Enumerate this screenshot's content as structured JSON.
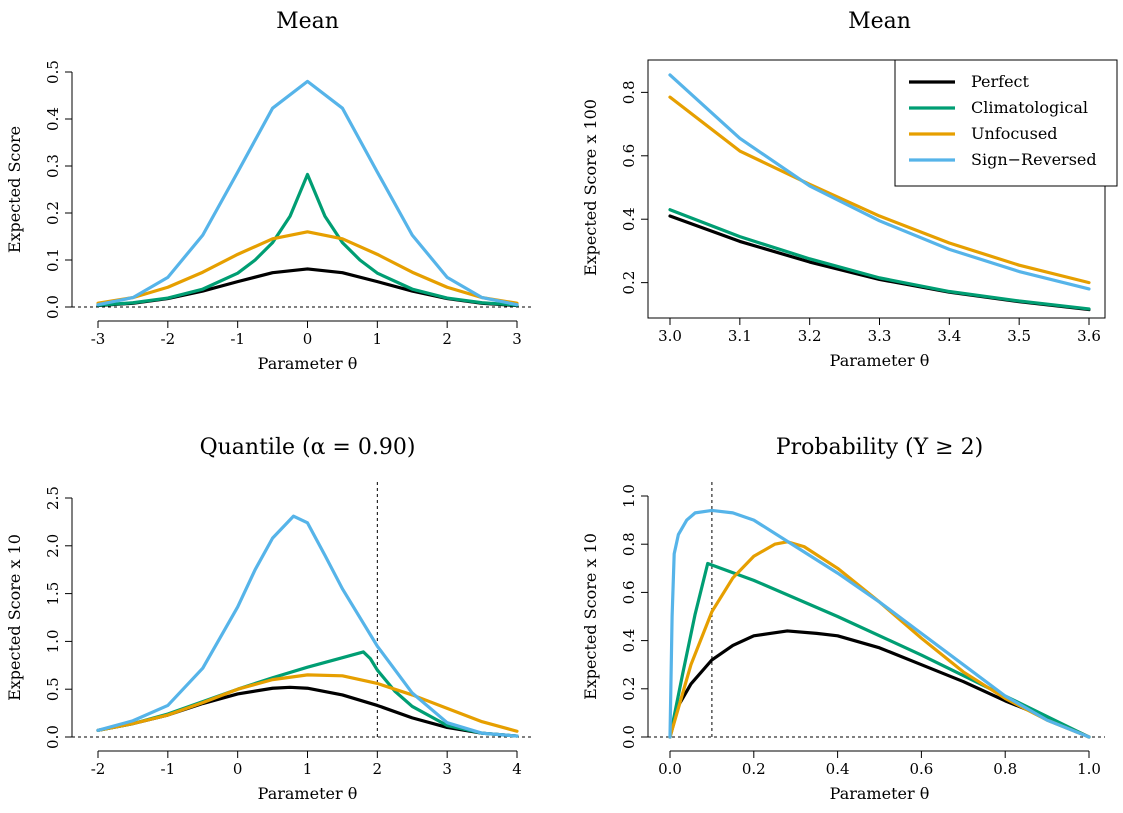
{
  "chart_data": [
    {
      "type": "line",
      "title": "Mean",
      "xlabel": "Parameter θ",
      "ylabel": "Expected Score",
      "xlim": [
        -3,
        3
      ],
      "ylim": [
        0,
        0.5
      ],
      "xticks": [
        -3,
        -2,
        -1,
        0,
        1,
        2,
        3
      ],
      "yticks": [
        "0.0",
        "0.1",
        "0.2",
        "0.3",
        "0.4",
        "0.5"
      ],
      "hline": 0,
      "series": [
        {
          "name": "Perfect",
          "color": "#000000",
          "x": [
            -3,
            -2.5,
            -2,
            -1.5,
            -1,
            -0.5,
            0,
            0.5,
            1,
            1.5,
            2,
            2.5,
            3
          ],
          "y": [
            0.003,
            0.008,
            0.018,
            0.034,
            0.054,
            0.073,
            0.081,
            0.073,
            0.054,
            0.034,
            0.018,
            0.008,
            0.003
          ]
        },
        {
          "name": "Climatological",
          "color": "#009E73",
          "x": [
            -3,
            -2.5,
            -2,
            -1.5,
            -1,
            -0.75,
            -0.5,
            -0.25,
            0,
            0.25,
            0.5,
            0.75,
            1,
            1.5,
            2,
            2.5,
            3
          ],
          "y": [
            0.004,
            0.009,
            0.019,
            0.038,
            0.072,
            0.1,
            0.137,
            0.193,
            0.282,
            0.193,
            0.137,
            0.1,
            0.072,
            0.038,
            0.019,
            0.009,
            0.004
          ]
        },
        {
          "name": "Unfocused",
          "color": "#E69F00",
          "x": [
            -3,
            -2.5,
            -2,
            -1.5,
            -1,
            -0.5,
            0,
            0.5,
            1,
            1.5,
            2,
            2.5,
            3
          ],
          "y": [
            0.008,
            0.02,
            0.042,
            0.074,
            0.112,
            0.145,
            0.16,
            0.145,
            0.112,
            0.074,
            0.042,
            0.02,
            0.008
          ]
        },
        {
          "name": "Sign−Reversed",
          "color": "#56B4E9",
          "x": [
            -3,
            -2.5,
            -2,
            -1.5,
            -1,
            -0.5,
            0,
            0.5,
            1,
            1.5,
            2,
            2.5,
            3
          ],
          "y": [
            0.005,
            0.02,
            0.063,
            0.153,
            0.287,
            0.423,
            0.48,
            0.423,
            0.287,
            0.153,
            0.063,
            0.02,
            0.005
          ]
        }
      ]
    },
    {
      "type": "line",
      "title": "Mean",
      "xlabel": "Parameter θ",
      "ylabel": "Expected Score x 100",
      "xlim": [
        3.0,
        3.6
      ],
      "ylim": [
        0.12,
        0.88
      ],
      "xticks": [
        "3.0",
        "3.1",
        "3.2",
        "3.3",
        "3.4",
        "3.5",
        "3.6"
      ],
      "yticks": [
        "0.2",
        "0.4",
        "0.6",
        "0.8"
      ],
      "legend": "top-right",
      "series": [
        {
          "name": "Perfect",
          "color": "#000000",
          "x": [
            3.0,
            3.1,
            3.2,
            3.3,
            3.4,
            3.5,
            3.6
          ],
          "y": [
            0.41,
            0.33,
            0.265,
            0.21,
            0.17,
            0.14,
            0.115
          ]
        },
        {
          "name": "Climatological",
          "color": "#009E73",
          "x": [
            3.0,
            3.1,
            3.2,
            3.3,
            3.4,
            3.5,
            3.6
          ],
          "y": [
            0.43,
            0.345,
            0.275,
            0.215,
            0.172,
            0.142,
            0.117
          ]
        },
        {
          "name": "Unfocused",
          "color": "#E69F00",
          "x": [
            3.0,
            3.1,
            3.2,
            3.3,
            3.4,
            3.5,
            3.6
          ],
          "y": [
            0.785,
            0.615,
            0.51,
            0.41,
            0.325,
            0.255,
            0.2
          ]
        },
        {
          "name": "Sign−Reversed",
          "color": "#56B4E9",
          "x": [
            3.0,
            3.1,
            3.2,
            3.3,
            3.4,
            3.5,
            3.6
          ],
          "y": [
            0.855,
            0.655,
            0.505,
            0.395,
            0.305,
            0.235,
            0.18
          ]
        }
      ]
    },
    {
      "type": "line",
      "title": "Quantile (α = 0.90)",
      "xlabel": "Parameter θ",
      "ylabel": "Expected Score x 10",
      "xlim": [
        -2,
        4
      ],
      "ylim": [
        0,
        2.5
      ],
      "xticks": [
        -2,
        -1,
        0,
        1,
        2,
        3,
        4
      ],
      "yticks": [
        "0.0",
        "0.5",
        "1.0",
        "1.5",
        "2.0",
        "2.5"
      ],
      "hline": 0,
      "vline": 2,
      "series": [
        {
          "name": "Perfect",
          "color": "#000000",
          "x": [
            -2,
            -1.5,
            -1,
            -0.5,
            0,
            0.5,
            0.75,
            1,
            1.5,
            2,
            2.5,
            3,
            3.5,
            4
          ],
          "y": [
            0.07,
            0.14,
            0.23,
            0.35,
            0.45,
            0.51,
            0.52,
            0.51,
            0.44,
            0.33,
            0.2,
            0.1,
            0.04,
            0.01
          ]
        },
        {
          "name": "Climatological",
          "color": "#009E73",
          "x": [
            -2,
            -1.5,
            -1,
            -0.5,
            0,
            0.5,
            1,
            1.5,
            1.8,
            1.9,
            2,
            2.25,
            2.5,
            3,
            3.5,
            4
          ],
          "y": [
            0.07,
            0.14,
            0.24,
            0.37,
            0.5,
            0.62,
            0.73,
            0.83,
            0.89,
            0.82,
            0.7,
            0.48,
            0.32,
            0.12,
            0.04,
            0.01
          ]
        },
        {
          "name": "Unfocused",
          "color": "#E69F00",
          "x": [
            -2,
            -1.5,
            -1,
            -0.5,
            0,
            0.5,
            1,
            1.5,
            2,
            2.5,
            3,
            3.5,
            4
          ],
          "y": [
            0.07,
            0.14,
            0.23,
            0.36,
            0.5,
            0.6,
            0.65,
            0.64,
            0.56,
            0.44,
            0.3,
            0.16,
            0.06
          ]
        },
        {
          "name": "Sign−Reversed",
          "color": "#56B4E9",
          "x": [
            -2,
            -1.5,
            -1,
            -0.5,
            0,
            0.25,
            0.5,
            0.8,
            1,
            1.25,
            1.5,
            2,
            2.5,
            3,
            3.5,
            4
          ],
          "y": [
            0.07,
            0.17,
            0.33,
            0.72,
            1.36,
            1.75,
            2.08,
            2.31,
            2.24,
            1.9,
            1.55,
            0.95,
            0.46,
            0.15,
            0.04,
            0.01
          ]
        }
      ]
    },
    {
      "type": "line",
      "title": "Probability (Y ≥ 2)",
      "xlabel": "Parameter θ",
      "ylabel": "Expected Score x 10",
      "xlim": [
        0,
        1
      ],
      "ylim": [
        0,
        1
      ],
      "xticks": [
        "0.0",
        "0.2",
        "0.4",
        "0.6",
        "0.8",
        "1.0"
      ],
      "yticks": [
        "0.0",
        "0.2",
        "0.4",
        "0.6",
        "0.8",
        "1.0"
      ],
      "hline": 0,
      "vline": 0.1,
      "series": [
        {
          "name": "Perfect",
          "color": "#000000",
          "x": [
            0,
            0.02,
            0.05,
            0.1,
            0.15,
            0.2,
            0.28,
            0.35,
            0.4,
            0.5,
            0.6,
            0.7,
            0.8,
            0.9,
            1.0
          ],
          "y": [
            0,
            0.13,
            0.22,
            0.32,
            0.38,
            0.42,
            0.44,
            0.43,
            0.42,
            0.37,
            0.3,
            0.23,
            0.15,
            0.08,
            0
          ]
        },
        {
          "name": "Climatological",
          "color": "#009E73",
          "x": [
            0,
            0.03,
            0.06,
            0.09,
            0.2,
            0.4,
            0.6,
            0.8,
            1.0
          ],
          "y": [
            0,
            0.26,
            0.51,
            0.72,
            0.65,
            0.5,
            0.34,
            0.17,
            0
          ]
        },
        {
          "name": "Unfocused",
          "color": "#E69F00",
          "x": [
            0,
            0.05,
            0.1,
            0.15,
            0.2,
            0.25,
            0.28,
            0.32,
            0.4,
            0.5,
            0.6,
            0.7,
            0.8,
            0.9,
            1.0
          ],
          "y": [
            0,
            0.3,
            0.52,
            0.66,
            0.75,
            0.8,
            0.81,
            0.79,
            0.7,
            0.56,
            0.41,
            0.27,
            0.16,
            0.07,
            0
          ]
        },
        {
          "name": "Sign−Reversed",
          "color": "#56B4E9",
          "x": [
            0,
            0.005,
            0.01,
            0.02,
            0.04,
            0.06,
            0.1,
            0.15,
            0.2,
            0.3,
            0.4,
            0.5,
            0.6,
            0.7,
            0.8,
            0.9,
            1.0
          ],
          "y": [
            0,
            0.5,
            0.76,
            0.84,
            0.9,
            0.93,
            0.94,
            0.93,
            0.9,
            0.79,
            0.68,
            0.56,
            0.43,
            0.3,
            0.17,
            0.07,
            0
          ]
        }
      ]
    }
  ]
}
